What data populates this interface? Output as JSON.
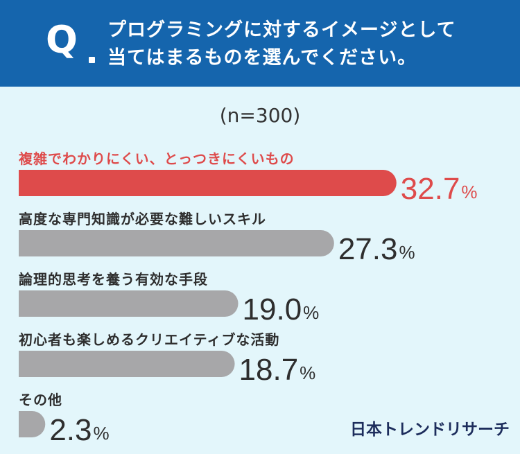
{
  "header": {
    "q_mark": "Q",
    "question_line1": "プログラミングに対するイメージとして",
    "question_line2": "当てはまるものを選んでください。"
  },
  "sample_size": "(n=300)",
  "brand": "日本トレンドリサーチ",
  "colors": {
    "header": "#1565ad",
    "highlight": "#de4b4b",
    "default_bar": "#a7a7a9",
    "background": "#e3f6fb"
  },
  "chart_data": {
    "type": "bar",
    "orientation": "horizontal",
    "unit": "%",
    "categories": [
      "複雑でわかりにくい、とっつきにくいもの",
      "高度な専門知識が必要な難しいスキル",
      "論理的思考を養う有効な手段",
      "初心者も楽しめるクリエイティブな活動",
      "その他"
    ],
    "values": [
      32.7,
      27.3,
      19.0,
      18.7,
      2.3
    ],
    "value_labels": [
      "32.7",
      "27.3",
      "19.0",
      "18.7",
      "2.3"
    ],
    "highlight_index": 0
  }
}
